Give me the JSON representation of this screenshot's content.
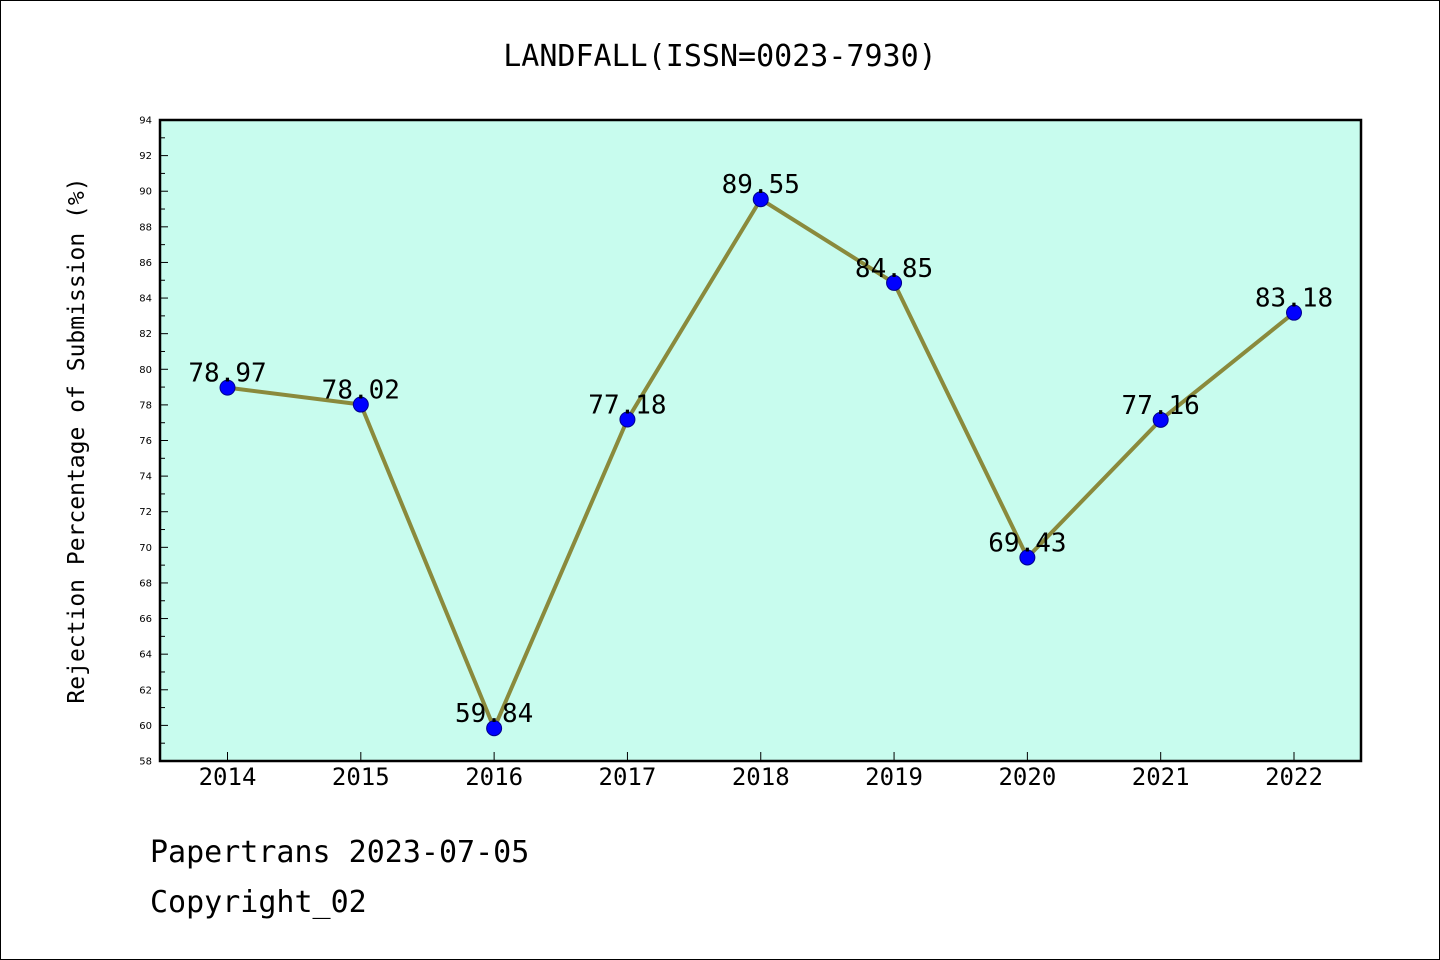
{
  "footer": {
    "source": "Papertrans 2023-07-05",
    "copyright": "Copyright_02"
  },
  "colors": {
    "plot_background": "#c8fcee",
    "line": "#8a8a3c",
    "marker_fill": "#0000ff",
    "marker_edge": "#00008b",
    "axis": "#000000",
    "text": "#000000"
  },
  "chart_data": {
    "type": "line",
    "title": "LANDFALL(ISSN=0023-7930)",
    "xlabel": "",
    "ylabel": "Rejection Percentage of Submission (%)",
    "categories": [
      "2014",
      "2015",
      "2016",
      "2017",
      "2018",
      "2019",
      "2020",
      "2021",
      "2022"
    ],
    "series": [
      {
        "values": [
          78.97,
          78.02,
          59.84,
          77.18,
          89.55,
          84.85,
          69.43,
          77.16,
          83.18
        ],
        "labels": [
          "78.97",
          "78.02",
          "59.84",
          "77.18",
          "89.55",
          "84.85",
          "69.43",
          "77.16",
          "83.18"
        ]
      }
    ],
    "ylim": [
      58,
      94
    ],
    "yticks": [
      "58",
      "60",
      "62",
      "64",
      "66",
      "68",
      "70",
      "72",
      "74",
      "76",
      "78",
      "80",
      "82",
      "84",
      "86",
      "88",
      "90",
      "92",
      "94"
    ],
    "grid": false,
    "legend": "none"
  }
}
